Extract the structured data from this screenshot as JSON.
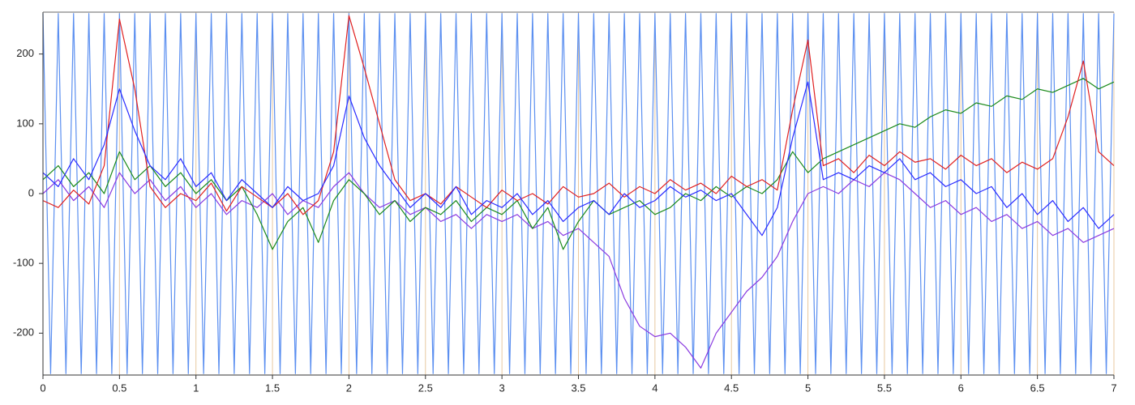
{
  "chart_data": {
    "type": "line",
    "xlim": [
      0,
      7
    ],
    "ylim": [
      -260,
      260
    ],
    "xticks": [
      0,
      0.5,
      1,
      1.5,
      2,
      2.5,
      3,
      3.5,
      4,
      4.5,
      5,
      5.5,
      6,
      6.5,
      7
    ],
    "yticks": [
      -200,
      -100,
      0,
      100,
      200
    ],
    "grid": true,
    "x": [
      0,
      0.1,
      0.2,
      0.3,
      0.4,
      0.5,
      0.6,
      0.7,
      0.8,
      0.9,
      1,
      1.1,
      1.2,
      1.3,
      1.4,
      1.5,
      1.6,
      1.7,
      1.8,
      1.9,
      2,
      2.1,
      2.2,
      2.3,
      2.4,
      2.5,
      2.6,
      2.7,
      2.8,
      2.9,
      3,
      3.1,
      3.2,
      3.3,
      3.4,
      3.5,
      3.6,
      3.7,
      3.8,
      3.9,
      4,
      4.1,
      4.2,
      4.3,
      4.4,
      4.5,
      4.6,
      4.7,
      4.8,
      4.9,
      5,
      5.1,
      5.2,
      5.3,
      5.4,
      5.5,
      5.6,
      5.7,
      5.8,
      5.9,
      6,
      6.1,
      6.2,
      6.3,
      6.4,
      6.5,
      6.6,
      6.7,
      6.8,
      6.9,
      7
    ],
    "series": [
      {
        "color": "#5b8ff0",
        "x": [
          0,
          0.05,
          0.1,
          0.15,
          0.2,
          0.25,
          0.3,
          0.35,
          0.4,
          0.45,
          0.5,
          0.55,
          0.6,
          0.65,
          0.7,
          0.75,
          0.8,
          0.85,
          0.9,
          0.95,
          1,
          1.05,
          1.1,
          1.15,
          1.2,
          1.25,
          1.3,
          1.35,
          1.4,
          1.45,
          1.5,
          1.55,
          1.6,
          1.65,
          1.7,
          1.75,
          1.8,
          1.85,
          1.9,
          1.95,
          2,
          2.05,
          2.1,
          2.15,
          2.2,
          2.25,
          2.3,
          2.35,
          2.4,
          2.45,
          2.5,
          2.55,
          2.6,
          2.65,
          2.7,
          2.75,
          2.8,
          2.85,
          2.9,
          2.95,
          3,
          3.05,
          3.1,
          3.15,
          3.2,
          3.25,
          3.3,
          3.35,
          3.4,
          3.45,
          3.5,
          3.55,
          3.6,
          3.65,
          3.7,
          3.75,
          3.8,
          3.85,
          3.9,
          3.95,
          4,
          4.05,
          4.1,
          4.15,
          4.2,
          4.25,
          4.3,
          4.35,
          4.4,
          4.45,
          4.5,
          4.55,
          4.6,
          4.65,
          4.7,
          4.75,
          4.8,
          4.85,
          4.9,
          4.95,
          5,
          5.05,
          5.1,
          5.15,
          5.2,
          5.25,
          5.3,
          5.35,
          5.4,
          5.45,
          5.5,
          5.55,
          5.6,
          5.65,
          5.7,
          5.75,
          5.8,
          5.85,
          5.9,
          5.95,
          6,
          6.05,
          6.1,
          6.15,
          6.2,
          6.25,
          6.3,
          6.35,
          6.4,
          6.45,
          6.5,
          6.55,
          6.6,
          6.65,
          6.7,
          6.75,
          6.8,
          6.85,
          6.9,
          6.95,
          7
        ],
        "values": [
          258,
          -258,
          258,
          -258,
          258,
          -258,
          258,
          -258,
          258,
          -258,
          258,
          -258,
          258,
          -258,
          258,
          -258,
          258,
          -258,
          258,
          -258,
          258,
          -258,
          258,
          -258,
          258,
          -258,
          258,
          -258,
          258,
          -258,
          258,
          -258,
          258,
          -258,
          258,
          -258,
          258,
          -258,
          258,
          -258,
          258,
          -258,
          258,
          -258,
          258,
          -258,
          258,
          -258,
          258,
          -258,
          258,
          -258,
          258,
          -258,
          258,
          -258,
          258,
          -258,
          258,
          -258,
          258,
          -258,
          258,
          -258,
          258,
          -258,
          258,
          -258,
          258,
          -258,
          258,
          -258,
          258,
          -258,
          258,
          -258,
          258,
          -258,
          258,
          -258,
          258,
          -258,
          258,
          -258,
          258,
          -258,
          258,
          -258,
          258,
          -258,
          258,
          -258,
          258,
          -258,
          258,
          -258,
          258,
          -258,
          258,
          -258,
          258,
          -258,
          258,
          -258,
          258,
          -258,
          258,
          -258,
          258,
          -258,
          258,
          -258,
          258,
          -258,
          258,
          -258,
          258,
          -258,
          258,
          -258,
          258,
          -258,
          258,
          -258,
          258,
          -258,
          258,
          -258,
          258,
          -258,
          258,
          -258,
          258,
          -258,
          258,
          -258,
          258,
          -258,
          258,
          -258,
          258
        ]
      },
      {
        "color": "#8a3ae0",
        "values": [
          0,
          20,
          -10,
          10,
          -20,
          30,
          0,
          20,
          -10,
          10,
          -20,
          0,
          -30,
          -10,
          -20,
          0,
          -30,
          -10,
          -20,
          10,
          30,
          0,
          -20,
          -10,
          -30,
          -20,
          -40,
          -30,
          -50,
          -30,
          -40,
          -30,
          -50,
          -40,
          -60,
          -50,
          -70,
          -90,
          -150,
          -190,
          -205,
          -200,
          -220,
          -250,
          -200,
          -170,
          -140,
          -120,
          -90,
          -40,
          0,
          10,
          0,
          20,
          10,
          30,
          20,
          0,
          -20,
          -10,
          -30,
          -20,
          -40,
          -30,
          -50,
          -40,
          -60,
          -50,
          -70,
          -60,
          -50
        ]
      },
      {
        "color": "#1a8a1a",
        "values": [
          20,
          40,
          10,
          30,
          0,
          60,
          20,
          40,
          10,
          30,
          0,
          20,
          -10,
          10,
          -30,
          -80,
          -40,
          -20,
          -70,
          -10,
          20,
          0,
          -30,
          -10,
          -40,
          -20,
          -30,
          -10,
          -40,
          -20,
          -30,
          -10,
          -50,
          -20,
          -80,
          -40,
          -10,
          -30,
          -20,
          -10,
          -30,
          -20,
          0,
          -10,
          10,
          -5,
          10,
          0,
          20,
          60,
          30,
          50,
          60,
          70,
          80,
          90,
          100,
          95,
          110,
          120,
          115,
          130,
          125,
          140,
          135,
          150,
          145,
          155,
          165,
          150,
          160
        ]
      },
      {
        "color": "#e02020",
        "values": [
          -10,
          -20,
          5,
          -15,
          40,
          250,
          150,
          10,
          -20,
          0,
          -10,
          15,
          -25,
          10,
          -5,
          -20,
          0,
          -30,
          -10,
          60,
          255,
          180,
          100,
          20,
          -10,
          0,
          -15,
          10,
          -5,
          -20,
          5,
          -10,
          0,
          -15,
          10,
          -5,
          0,
          15,
          -5,
          10,
          0,
          20,
          5,
          15,
          0,
          25,
          10,
          20,
          5,
          120,
          220,
          40,
          50,
          30,
          55,
          40,
          60,
          45,
          50,
          35,
          55,
          40,
          50,
          30,
          45,
          35,
          50,
          110,
          190,
          60,
          40
        ]
      },
      {
        "color": "#2a2aff",
        "values": [
          30,
          10,
          50,
          20,
          70,
          150,
          90,
          40,
          20,
          50,
          10,
          30,
          -10,
          20,
          0,
          -20,
          10,
          -10,
          0,
          40,
          140,
          80,
          40,
          10,
          -20,
          0,
          -20,
          10,
          -30,
          -10,
          -20,
          0,
          -30,
          -10,
          -40,
          -20,
          -10,
          -30,
          0,
          -20,
          -10,
          10,
          -5,
          5,
          -10,
          0,
          -30,
          -60,
          -20,
          80,
          160,
          20,
          30,
          20,
          40,
          30,
          50,
          20,
          30,
          10,
          20,
          0,
          10,
          -20,
          0,
          -30,
          -10,
          -40,
          -20,
          -50,
          -30
        ]
      }
    ]
  }
}
